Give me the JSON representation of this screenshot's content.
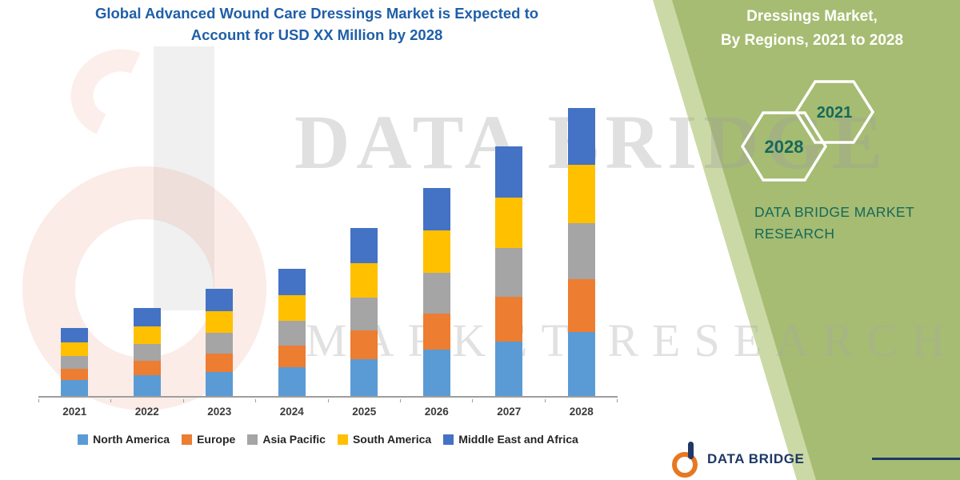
{
  "title": {
    "line1": "Global Advanced Wound Care Dressings Market is Expected to",
    "line2": "Account for USD XX Million by 2028"
  },
  "side_panel": {
    "heading_line1": "Dressings Market,",
    "heading_line2": "By Regions, 2021 to 2028",
    "hex_badge_1": "2021",
    "hex_badge_2": "2028",
    "brand_line1": "DATA BRIDGE MARKET",
    "brand_line2": "RESEARCH"
  },
  "watermark": {
    "line1": "DATA BRIDGE",
    "line2": "MARKET RESEARCH"
  },
  "footer": {
    "brand": "DATA BRIDGE"
  },
  "colors": {
    "panel_green": "#A6BC72",
    "panel_green_light": "#CBD9A6",
    "title_blue": "#1F5FA8",
    "brand_teal": "#15695A",
    "footer_navy": "#1F3864"
  },
  "chart_data": {
    "type": "bar",
    "stacked": true,
    "title": "Global Advanced Wound Care Dressings Market is Expected to Account for USD XX Million by 2028",
    "xlabel": "",
    "ylabel": "",
    "y_axis_visible": false,
    "legend_position": "bottom",
    "categories": [
      "2021",
      "2022",
      "2023",
      "2024",
      "2025",
      "2026",
      "2027",
      "2028"
    ],
    "series": [
      {
        "name": "North America",
        "color": "#5B9BD5",
        "values": [
          20,
          26,
          30,
          36,
          46,
          58,
          68,
          80
        ]
      },
      {
        "name": "Europe",
        "color": "#ED7D31",
        "values": [
          14,
          18,
          23,
          27,
          36,
          45,
          56,
          66
        ]
      },
      {
        "name": "Asia Pacific",
        "color": "#A5A5A5",
        "values": [
          16,
          21,
          26,
          31,
          41,
          51,
          61,
          70
        ]
      },
      {
        "name": "South America",
        "color": "#FFC000",
        "values": [
          17,
          22,
          27,
          32,
          43,
          53,
          63,
          73
        ]
      },
      {
        "name": "Middle East and Africa",
        "color": "#4472C4",
        "values": [
          18,
          23,
          28,
          33,
          44,
          53,
          64,
          71
        ]
      }
    ],
    "totals": [
      85,
      110,
      134,
      159,
      210,
      260,
      312,
      360
    ]
  }
}
